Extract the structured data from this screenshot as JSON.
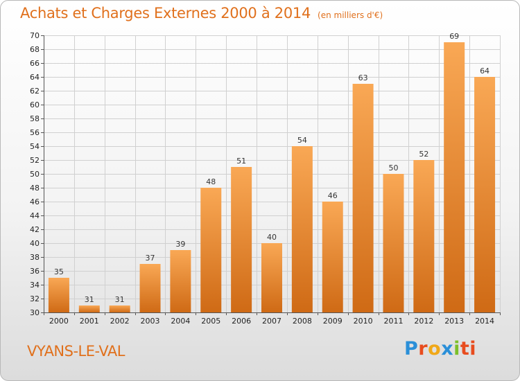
{
  "header": {
    "title": "Achats et Charges Externes 2000 à 2014",
    "unit": "(en milliers d'€)"
  },
  "footer": {
    "commune": "VYANS-LE-VAL",
    "logo_letters": [
      "P",
      "r",
      "o",
      "x",
      "i",
      "ti"
    ]
  },
  "colors": {
    "bar_light": "#f9a855",
    "bar_dark": "#cf6a15",
    "title": "#e0701c"
  },
  "chart_data": {
    "type": "bar",
    "categories": [
      "2000",
      "2001",
      "2002",
      "2003",
      "2004",
      "2005",
      "2006",
      "2007",
      "2008",
      "2009",
      "2010",
      "2011",
      "2012",
      "2013",
      "2014"
    ],
    "values": [
      35,
      31,
      31,
      37,
      39,
      48,
      51,
      40,
      54,
      46,
      63,
      50,
      52,
      69,
      64
    ],
    "title": "Achats et Charges Externes 2000 à 2014",
    "ylim": [
      30,
      70
    ],
    "yticks": [
      30,
      32,
      34,
      36,
      38,
      40,
      42,
      44,
      46,
      48,
      50,
      52,
      54,
      56,
      58,
      60,
      62,
      64,
      66,
      68,
      70
    ],
    "grid": true,
    "legend": "none"
  }
}
